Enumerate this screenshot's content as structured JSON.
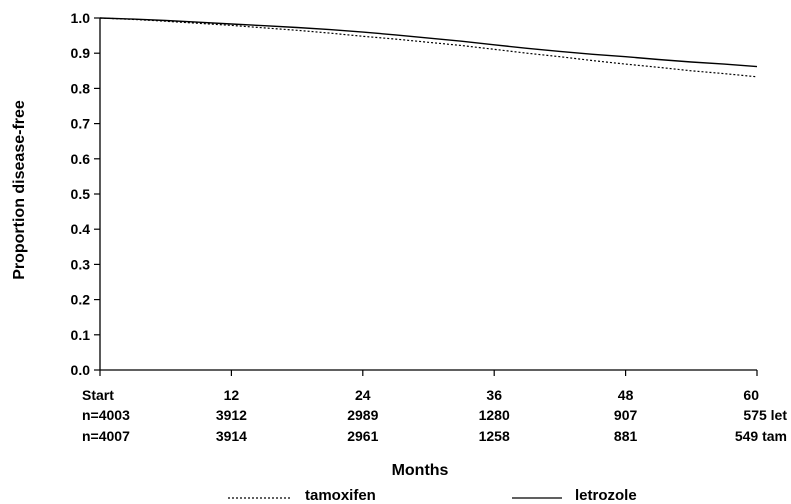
{
  "chart_data": {
    "type": "line",
    "xlabel": "Months",
    "ylabel": "Proportion disease-free",
    "xlim": [
      0,
      60
    ],
    "ylim": [
      0.0,
      1.0
    ],
    "y_ticks": [
      "0.0",
      "0.1",
      "0.2",
      "0.3",
      "0.4",
      "0.5",
      "0.6",
      "0.7",
      "0.8",
      "0.9",
      "1.0"
    ],
    "x_ticks": [
      {
        "x": 0,
        "label": "Start"
      },
      {
        "x": 12,
        "label": "12"
      },
      {
        "x": 24,
        "label": "24"
      },
      {
        "x": 36,
        "label": "36"
      },
      {
        "x": 48,
        "label": "48"
      },
      {
        "x": 60,
        "label": "60"
      }
    ],
    "at_risk": [
      {
        "values": [
          "n=4003",
          "3912",
          "2989",
          "1280",
          "907",
          "575 let"
        ]
      },
      {
        "values": [
          "n=4007",
          "3914",
          "2961",
          "1258",
          "881",
          "549 tam"
        ]
      }
    ],
    "series": [
      {
        "name": "letrozole",
        "style": "solid",
        "x": [
          0,
          3,
          6,
          9,
          12,
          15,
          18,
          21,
          24,
          27,
          30,
          33,
          36,
          39,
          42,
          45,
          48,
          51,
          54,
          57,
          60
        ],
        "y": [
          1.0,
          0.997,
          0.993,
          0.988,
          0.983,
          0.978,
          0.973,
          0.967,
          0.96,
          0.952,
          0.943,
          0.934,
          0.924,
          0.914,
          0.905,
          0.897,
          0.89,
          0.882,
          0.875,
          0.869,
          0.862
        ]
      },
      {
        "name": "tamoxifen",
        "style": "dotted",
        "x": [
          0,
          3,
          6,
          9,
          12,
          15,
          18,
          21,
          24,
          27,
          30,
          33,
          36,
          39,
          42,
          45,
          48,
          51,
          54,
          57,
          60
        ],
        "y": [
          1.0,
          0.996,
          0.991,
          0.985,
          0.979,
          0.972,
          0.965,
          0.957,
          0.948,
          0.94,
          0.931,
          0.922,
          0.911,
          0.9,
          0.89,
          0.879,
          0.869,
          0.86,
          0.85,
          0.842,
          0.833
        ]
      }
    ],
    "legend": [
      {
        "name": "tamoxifen",
        "style": "dotted"
      },
      {
        "name": "letrozole",
        "style": "solid"
      }
    ],
    "legend_position": "bottom",
    "grid": false
  }
}
